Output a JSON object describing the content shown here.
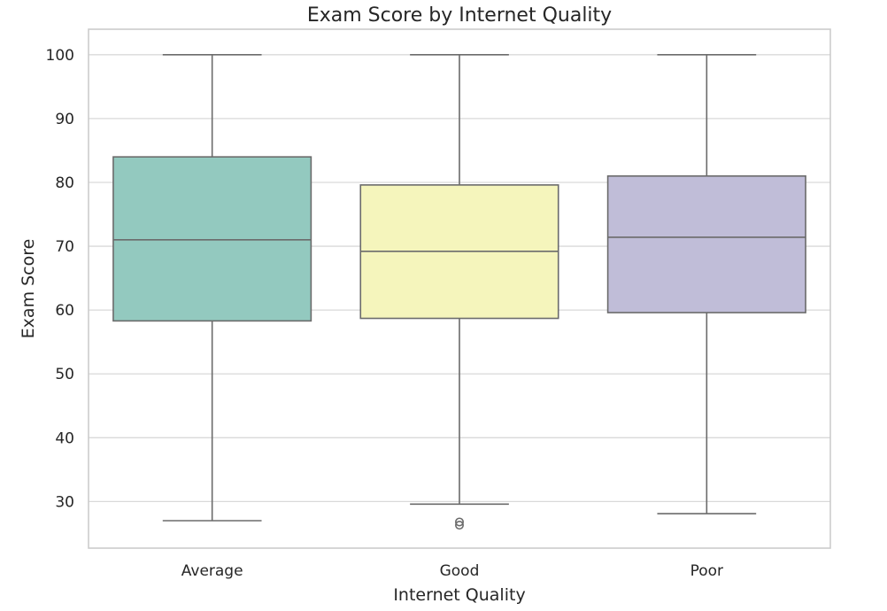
{
  "chart_data": {
    "type": "box",
    "title": "Exam Score by Internet Quality",
    "xlabel": "Internet Quality",
    "ylabel": "Exam Score",
    "ylim": [
      22.7,
      104
    ],
    "yticks": [
      30,
      40,
      50,
      60,
      70,
      80,
      90,
      100
    ],
    "grid": true,
    "categories": [
      "Average",
      "Good",
      "Poor"
    ],
    "boxes": [
      {
        "category": "Average",
        "whislo": 27,
        "q1": 58.3,
        "med": 71,
        "q3": 84,
        "whishi": 100,
        "fliers": [],
        "color": "#93c9bf"
      },
      {
        "category": "Good",
        "whislo": 29.6,
        "q1": 58.7,
        "med": 69.2,
        "q3": 79.6,
        "whishi": 100,
        "fliers": [
          26.3,
          26.8
        ],
        "color": "#f5f5bc"
      },
      {
        "category": "Poor",
        "whislo": 28.1,
        "q1": 59.6,
        "med": 71.4,
        "q3": 81,
        "whishi": 100,
        "fliers": [],
        "color": "#c0bdd8"
      }
    ]
  }
}
